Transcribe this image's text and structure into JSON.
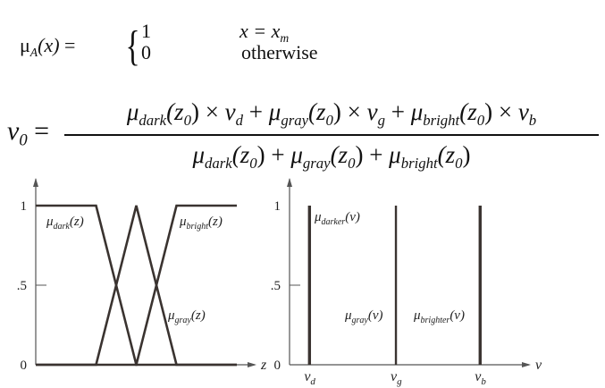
{
  "membership_formula": {
    "lhs_symbol": "μ",
    "lhs_sub": "A",
    "lhs_arg": "(x)",
    "equals": "=",
    "brace": "{",
    "case1_value": "1",
    "case1_condition_a": "x = x",
    "case1_condition_sub": "m",
    "case2_value": "0",
    "case2_condition": "otherwise"
  },
  "output_formula": {
    "lhs": "v",
    "lhs_sub": "0",
    "equals": "=",
    "numerator": [
      {
        "mu": "μ",
        "sub": "dark",
        "arg": "(z",
        "argsub": "0",
        "close": ")",
        "op": " × ",
        "v": "v",
        "vsub": "d",
        "plus": " + "
      },
      {
        "mu": "μ",
        "sub": "gray",
        "arg": "(z",
        "argsub": "0",
        "close": ")",
        "op": " × ",
        "v": "v",
        "vsub": "g",
        "plus": " + "
      },
      {
        "mu": "μ",
        "sub": "bright",
        "arg": "(z",
        "argsub": "0",
        "close": ")",
        "op": " × ",
        "v": "v",
        "vsub": "b",
        "plus": ""
      }
    ],
    "denominator": [
      {
        "mu": "μ",
        "sub": "dark",
        "arg": "(z",
        "argsub": "0",
        "close": ")",
        "plus": " + "
      },
      {
        "mu": "μ",
        "sub": "gray",
        "arg": "(z",
        "argsub": "0",
        "close": ")",
        "plus": " + "
      },
      {
        "mu": "μ",
        "sub": "bright",
        "arg": "(z",
        "argsub": "0",
        "close": ")",
        "plus": ""
      }
    ]
  },
  "chart_data": [
    {
      "type": "line",
      "xlabel": "z",
      "yticks": [
        "0",
        ".5",
        "1"
      ],
      "ylim": [
        0,
        1
      ],
      "xlim": [
        0,
        1
      ],
      "line_color": "#3a3330",
      "series": [
        {
          "name": "μdark(z)",
          "label_mu": "μ",
          "label_sub": "dark",
          "label_arg": "(z)",
          "points": [
            [
              0,
              1
            ],
            [
              0.3,
              1
            ],
            [
              0.5,
              0
            ],
            [
              1,
              0
            ]
          ]
        },
        {
          "name": "μgray(z)",
          "label_mu": "μ",
          "label_sub": "gray",
          "label_arg": "(z)",
          "points": [
            [
              0,
              0
            ],
            [
              0.3,
              0
            ],
            [
              0.5,
              1
            ],
            [
              0.7,
              0
            ],
            [
              1,
              0
            ]
          ]
        },
        {
          "name": "μbright(z)",
          "label_mu": "μ",
          "label_sub": "bright",
          "label_arg": "(z)",
          "points": [
            [
              0,
              0
            ],
            [
              0.5,
              0
            ],
            [
              0.7,
              1
            ],
            [
              1,
              1
            ]
          ]
        }
      ]
    },
    {
      "type": "bar",
      "xlabel": "v",
      "yticks": [
        "0",
        ".5",
        "1"
      ],
      "ylim": [
        0,
        1
      ],
      "line_color": "#3a3330",
      "series": [
        {
          "name": "μdarker(v)",
          "label_mu": "μ",
          "label_sub": "darker",
          "label_arg": "(v)",
          "tick": "v",
          "tick_sub": "d",
          "x": 0.09,
          "value": 1
        },
        {
          "name": "μgray(v)",
          "label_mu": "μ",
          "label_sub": "gray",
          "label_arg": "(v)",
          "tick": "v",
          "tick_sub": "g",
          "x": 0.48,
          "value": 1
        },
        {
          "name": "μbrighter(v)",
          "label_mu": "μ",
          "label_sub": "brighter",
          "label_arg": "(v)",
          "tick": "v",
          "tick_sub": "b",
          "x": 0.86,
          "value": 1
        }
      ]
    }
  ]
}
